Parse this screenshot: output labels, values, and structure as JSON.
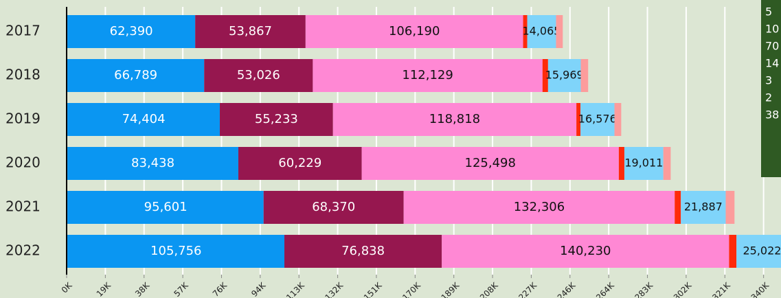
{
  "chart_data": {
    "type": "stacked-barh",
    "categories": [
      "2017",
      "2018",
      "2019",
      "2020",
      "2021",
      "2022"
    ],
    "series": [
      {
        "color": "#0a96f2",
        "values": [
          368,
          350,
          369,
          376,
          540,
          535
        ]
      },
      {
        "color": "#0a96f2",
        "values": [
          62390,
          66789,
          74404,
          83438,
          95601,
          105756
        ],
        "value_labels": [
          "62,390",
          "66,789",
          "74,404",
          "83,438",
          "95,601",
          "105,756"
        ]
      },
      {
        "color": "#96174f",
        "values": [
          53867,
          53026,
          55233,
          60229,
          68370,
          76838
        ],
        "value_labels": [
          "53,867",
          "53,026",
          "55,233",
          "60,229",
          "68,370",
          "76,838"
        ]
      },
      {
        "color": "#ff88d4",
        "values": [
          106190,
          112129,
          118818,
          125498,
          132306,
          140230
        ],
        "value_labels": [
          "106,190",
          "112,129",
          "118,818",
          "125,498",
          "132,306",
          "140,230"
        ]
      },
      {
        "color": "#ff2a0a",
        "values": [
          2000,
          2700,
          2000,
          2700,
          3000,
          3600
        ]
      },
      {
        "color": "#7fd4fa",
        "values": [
          14065,
          15969,
          16576,
          19011,
          21887,
          25022
        ],
        "value_labels": [
          "14,065",
          "15,969",
          "16,576",
          "19,011",
          "21,887",
          "25,022"
        ]
      },
      {
        "color": "#fc9c9c",
        "values": [
          3300,
          3600,
          3300,
          3600,
          4300,
          null
        ]
      }
    ],
    "xlim": [
      0,
      343000
    ],
    "xticks": [
      {
        "value": 0,
        "label": "0K"
      },
      {
        "value": 18900,
        "label": "19K"
      },
      {
        "value": 37800,
        "label": "38K"
      },
      {
        "value": 56700,
        "label": "57K"
      },
      {
        "value": 75600,
        "label": "76K"
      },
      {
        "value": 94500,
        "label": "94K"
      },
      {
        "value": 113400,
        "label": "113K"
      },
      {
        "value": 132300,
        "label": "132K"
      },
      {
        "value": 151200,
        "label": "151K"
      },
      {
        "value": 170100,
        "label": "170K"
      },
      {
        "value": 189000,
        "label": "189K"
      },
      {
        "value": 207900,
        "label": "208K"
      },
      {
        "value": 226800,
        "label": "227K"
      },
      {
        "value": 245700,
        "label": "246K"
      },
      {
        "value": 264600,
        "label": "264K"
      },
      {
        "value": 283500,
        "label": "283K"
      },
      {
        "value": 302400,
        "label": "302K"
      },
      {
        "value": 321300,
        "label": "321K"
      },
      {
        "value": 340200,
        "label": "340K"
      }
    ],
    "grid": true,
    "annotation_lines": [
      "5",
      "10",
      "70",
      "14",
      "3",
      "2",
      "38"
    ]
  }
}
